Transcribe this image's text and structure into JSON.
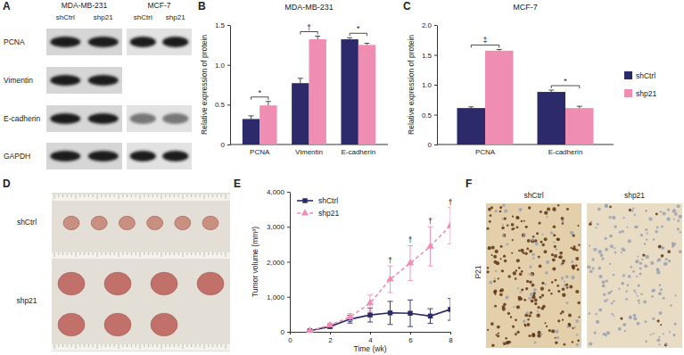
{
  "blot": {
    "panel": "A",
    "groups": [
      {
        "label": "MDA-MB-231",
        "lanes": [
          "shCtrl",
          "shp21"
        ]
      },
      {
        "label": "MCF-7",
        "lanes": [
          "shCtrl",
          "shp21"
        ]
      }
    ],
    "proteins": [
      "PCNA",
      "Vimentin",
      "E-cadherin",
      "GAPDH"
    ]
  },
  "chart_data": [
    {
      "panel": "B",
      "type": "bar",
      "title": "MDA-MB-231",
      "y_label": "Relative expression of protein",
      "categories": [
        "PCNA",
        "Vimentin",
        "E-cadherin"
      ],
      "series": [
        {
          "name": "shCtrl",
          "color": "#2d2a6c",
          "values": [
            0.32,
            0.77,
            1.32
          ],
          "errors": [
            0.04,
            0.06,
            0.02
          ]
        },
        {
          "name": "shp21",
          "color": "#f08db3",
          "values": [
            0.49,
            1.32,
            1.25
          ],
          "errors": [
            0.05,
            0.04,
            0.02
          ]
        }
      ],
      "significance": [
        "*",
        "†",
        "*"
      ],
      "ylim": [
        0,
        1.5
      ],
      "yticks": [
        0,
        0.5,
        {
          "value": 1,
          "label": "1.0"
        },
        1.5
      ]
    },
    {
      "panel": "C",
      "type": "bar",
      "title": "MCF-7",
      "y_label": "Relative expression of protein",
      "categories": [
        "PCNA",
        "E-cadherin"
      ],
      "series": [
        {
          "name": "shCtrl",
          "color": "#2d2a6c",
          "values": [
            0.61,
            0.88
          ],
          "errors": [
            0.02,
            0.03
          ]
        },
        {
          "name": "shp21",
          "color": "#f08db3",
          "values": [
            1.57,
            0.61
          ],
          "errors": [
            0.02,
            0.03
          ]
        }
      ],
      "significance": [
        "‡",
        "*"
      ],
      "ylim": [
        0,
        2
      ],
      "yticks": [
        0,
        0.5,
        {
          "value": 1,
          "label": "1.0"
        },
        1.5,
        {
          "value": 2,
          "label": "2.0"
        }
      ],
      "legend": "right"
    },
    {
      "panel": "E",
      "type": "line",
      "x_label": "Time (wk)",
      "y_label": "Tumor volume (mm³)",
      "x": [
        1,
        2,
        3,
        4,
        5,
        6,
        7,
        8
      ],
      "series": [
        {
          "name": "shCtrl",
          "color": "#2d2a6c",
          "marker": "square",
          "line_style": "solid",
          "values": [
            30,
            150,
            360,
            480,
            540,
            530,
            450,
            640
          ],
          "errors": [
            20,
            40,
            110,
            200,
            330,
            380,
            210,
            310
          ]
        },
        {
          "name": "shp21",
          "color": "#f08db3",
          "marker": "triangle",
          "line_style": "dashed",
          "values": [
            30,
            190,
            420,
            820,
            1500,
            1960,
            2440,
            3030
          ],
          "errors": [
            20,
            50,
            100,
            230,
            380,
            500,
            560,
            520
          ]
        }
      ],
      "significance": [
        null,
        null,
        null,
        null,
        "†",
        "†",
        "†",
        "†"
      ],
      "xlim": [
        0,
        8
      ],
      "xticks": [
        0,
        2,
        4,
        6,
        8
      ],
      "ylim": [
        0,
        4000
      ],
      "yticks": [
        0,
        {
          "value": 1000,
          "label": "1,000"
        },
        {
          "value": 2000,
          "label": "2,000"
        },
        {
          "value": 3000,
          "label": "3,000"
        },
        {
          "value": 4000,
          "label": "4,000"
        }
      ],
      "legend": "top-left"
    }
  ],
  "tumor_photo": {
    "panel": "D",
    "groups": [
      {
        "label": "shCtrl",
        "tumor_count": 6
      },
      {
        "label": "shp21",
        "tumor_count": 7
      }
    ]
  },
  "ihc": {
    "panel": "F",
    "stain": "P21",
    "groups": [
      "shCtrl",
      "shp21"
    ]
  }
}
